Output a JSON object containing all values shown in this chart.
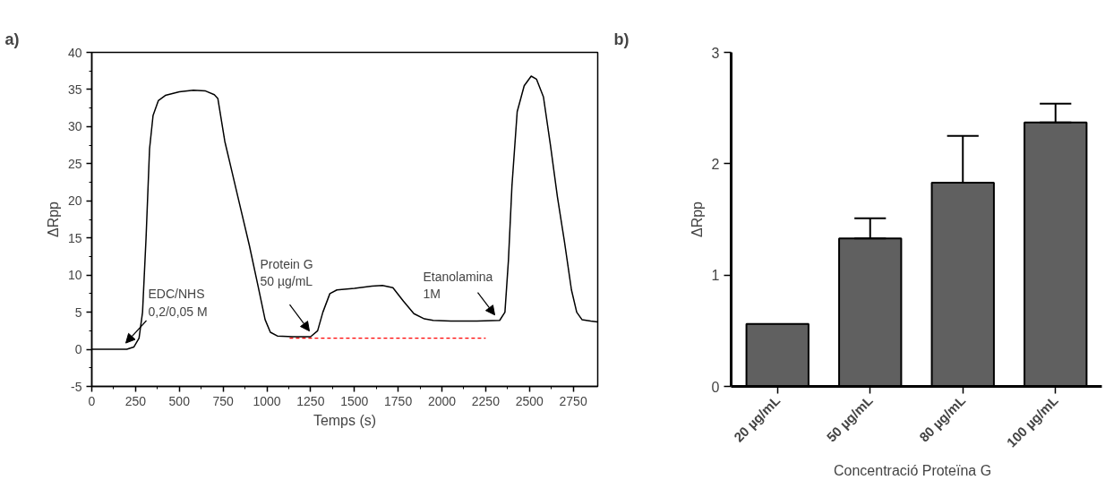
{
  "chart_data": [
    {
      "type": "line",
      "title": "a)",
      "xlabel": "Temps (s)",
      "ylabel": "ΔRpp",
      "xlim": [
        0,
        2890
      ],
      "ylim": [
        -5,
        40
      ],
      "xticks": [
        0,
        250,
        500,
        750,
        1000,
        1250,
        1500,
        1750,
        2000,
        2250,
        2500,
        2750
      ],
      "yticks": [
        -5,
        0,
        5,
        10,
        15,
        20,
        25,
        30,
        35,
        40
      ],
      "grid": false,
      "series": [
        {
          "color": "#000000",
          "x": [
            0,
            100,
            200,
            240,
            270,
            290,
            310,
            330,
            350,
            380,
            420,
            500,
            580,
            650,
            700,
            720,
            760,
            800,
            850,
            900,
            950,
            990,
            1020,
            1060,
            1150,
            1250,
            1290,
            1320,
            1360,
            1400,
            1500,
            1600,
            1660,
            1720,
            1780,
            1840,
            1900,
            1950,
            2050,
            2200,
            2330,
            2360,
            2380,
            2400,
            2430,
            2470,
            2510,
            2540,
            2580,
            2620,
            2660,
            2700,
            2740,
            2770,
            2800,
            2850,
            2890
          ],
          "values": [
            0,
            0,
            0,
            0.3,
            1.5,
            5,
            15,
            27,
            31.5,
            33.5,
            34.2,
            34.7,
            34.9,
            34.8,
            34.3,
            33.8,
            28,
            24,
            19,
            14,
            8.5,
            4,
            2.3,
            1.8,
            1.7,
            1.7,
            2.5,
            5,
            7.5,
            8,
            8.2,
            8.5,
            8.6,
            8.3,
            6.5,
            4.8,
            4.1,
            3.9,
            3.8,
            3.8,
            3.9,
            5,
            12,
            22,
            32,
            35.5,
            36.8,
            36.4,
            34,
            27.5,
            20.5,
            14.5,
            8,
            5,
            4,
            3.8,
            3.7
          ]
        },
        {
          "color": "#ff0000",
          "line_style": "dashed",
          "x": [
            1130,
            2250
          ],
          "values": [
            1.5,
            1.5
          ]
        }
      ],
      "annotations": [
        "EDC/NHS\n0,2/0,05 M",
        "Protein G\n50 µg/mL",
        "Etanolamina\n1M"
      ]
    },
    {
      "type": "bar",
      "title": "b)",
      "xlabel": "Concentració  Proteïna  G",
      "ylabel": "ΔRpp",
      "categories": [
        "20 µg/mL",
        "50 µg/mL",
        "80 µg/mL",
        "100 µg/mL"
      ],
      "values": [
        0.56,
        1.33,
        1.83,
        2.37
      ],
      "errors": [
        null,
        [
          1.33,
          1.51
        ],
        [
          1.83,
          2.25
        ],
        [
          2.37,
          2.54
        ]
      ],
      "color": "#606060",
      "ylim": [
        0,
        3
      ],
      "yticks": [
        0,
        1,
        2,
        3
      ],
      "grid": false
    }
  ]
}
